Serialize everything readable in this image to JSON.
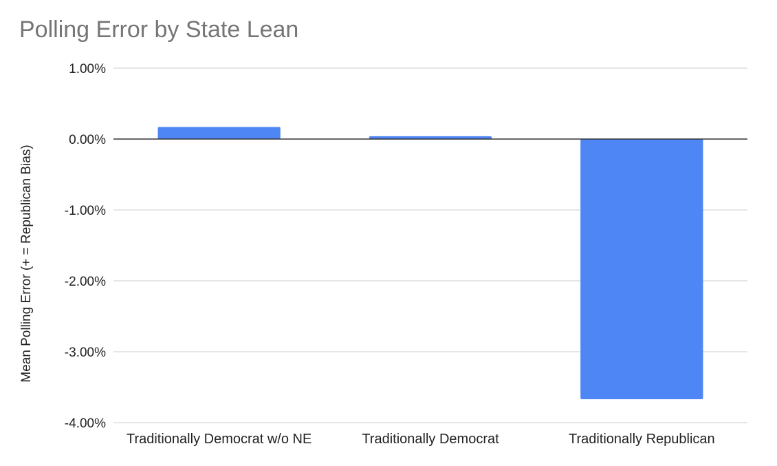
{
  "chart_data": {
    "type": "bar",
    "title": "Polling Error by State Lean",
    "xlabel": "",
    "ylabel": "Mean Polling Error (+ = Republican Bias)",
    "categories": [
      "Traditionally Democrat w/o NE",
      "Traditionally Democrat",
      "Traditionally Republican"
    ],
    "values": [
      0.17,
      0.04,
      -3.67
    ],
    "value_unit": "%",
    "ylim": [
      -4.0,
      1.0
    ],
    "yticks": [
      1.0,
      0.0,
      -1.0,
      -2.0,
      -3.0,
      -4.0
    ],
    "ytick_labels": [
      "1.00%",
      "0.00%",
      "-1.00%",
      "-2.00%",
      "-3.00%",
      "-4.00%"
    ],
    "grid": true,
    "legend": "none",
    "bar_color": "#4e86f5",
    "gridline_color": "#cccccc",
    "zero_line_color": "#333333"
  }
}
